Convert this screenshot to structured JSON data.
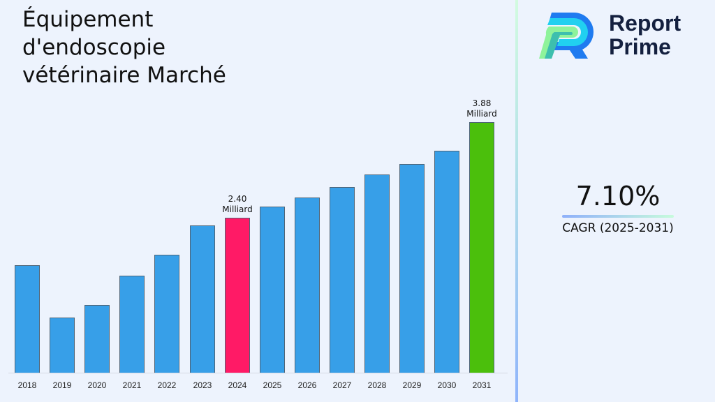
{
  "title": {
    "line1": "Équipement",
    "line2": "d'endoscopie",
    "line3": "vétérinaire Marché"
  },
  "logo": {
    "line1": "Report",
    "line2": "Prime",
    "icon": "report-prime-r-logo"
  },
  "cagr": {
    "value": "7.10%",
    "label": "CAGR (2025-2031)"
  },
  "annotations": {
    "a2024": {
      "value": "2.40",
      "unit": "Milliard"
    },
    "a2031": {
      "value": "3.88",
      "unit": "Milliard"
    }
  },
  "colors": {
    "default_bar": "#379fe8",
    "highlight_2024": "#ff1a66",
    "highlight_2031": "#4bbf0c",
    "background": "#edf3fd"
  },
  "chart_data": {
    "type": "bar",
    "title": "Équipement d'endoscopie vétérinaire Marché",
    "xlabel": "",
    "ylabel": "",
    "unit": "Milliard",
    "categories": [
      "2018",
      "2019",
      "2020",
      "2021",
      "2022",
      "2023",
      "2024",
      "2025",
      "2026",
      "2027",
      "2028",
      "2029",
      "2030",
      "2031"
    ],
    "values": [
      1.66,
      0.85,
      1.05,
      1.5,
      1.83,
      2.28,
      2.4,
      2.57,
      2.71,
      2.88,
      3.07,
      3.23,
      3.44,
      3.88
    ],
    "labeled_points": {
      "2024": "2.40 Milliard",
      "2031": "3.88 Milliard"
    },
    "highlight": {
      "2024": "#ff1a66",
      "2031": "#4bbf0c"
    },
    "bar_color": "#379fe8",
    "ylim": [
      0,
      4.2
    ],
    "grid": false,
    "legend": "none",
    "cagr": "7.10%",
    "cagr_period": "2025-2031"
  }
}
